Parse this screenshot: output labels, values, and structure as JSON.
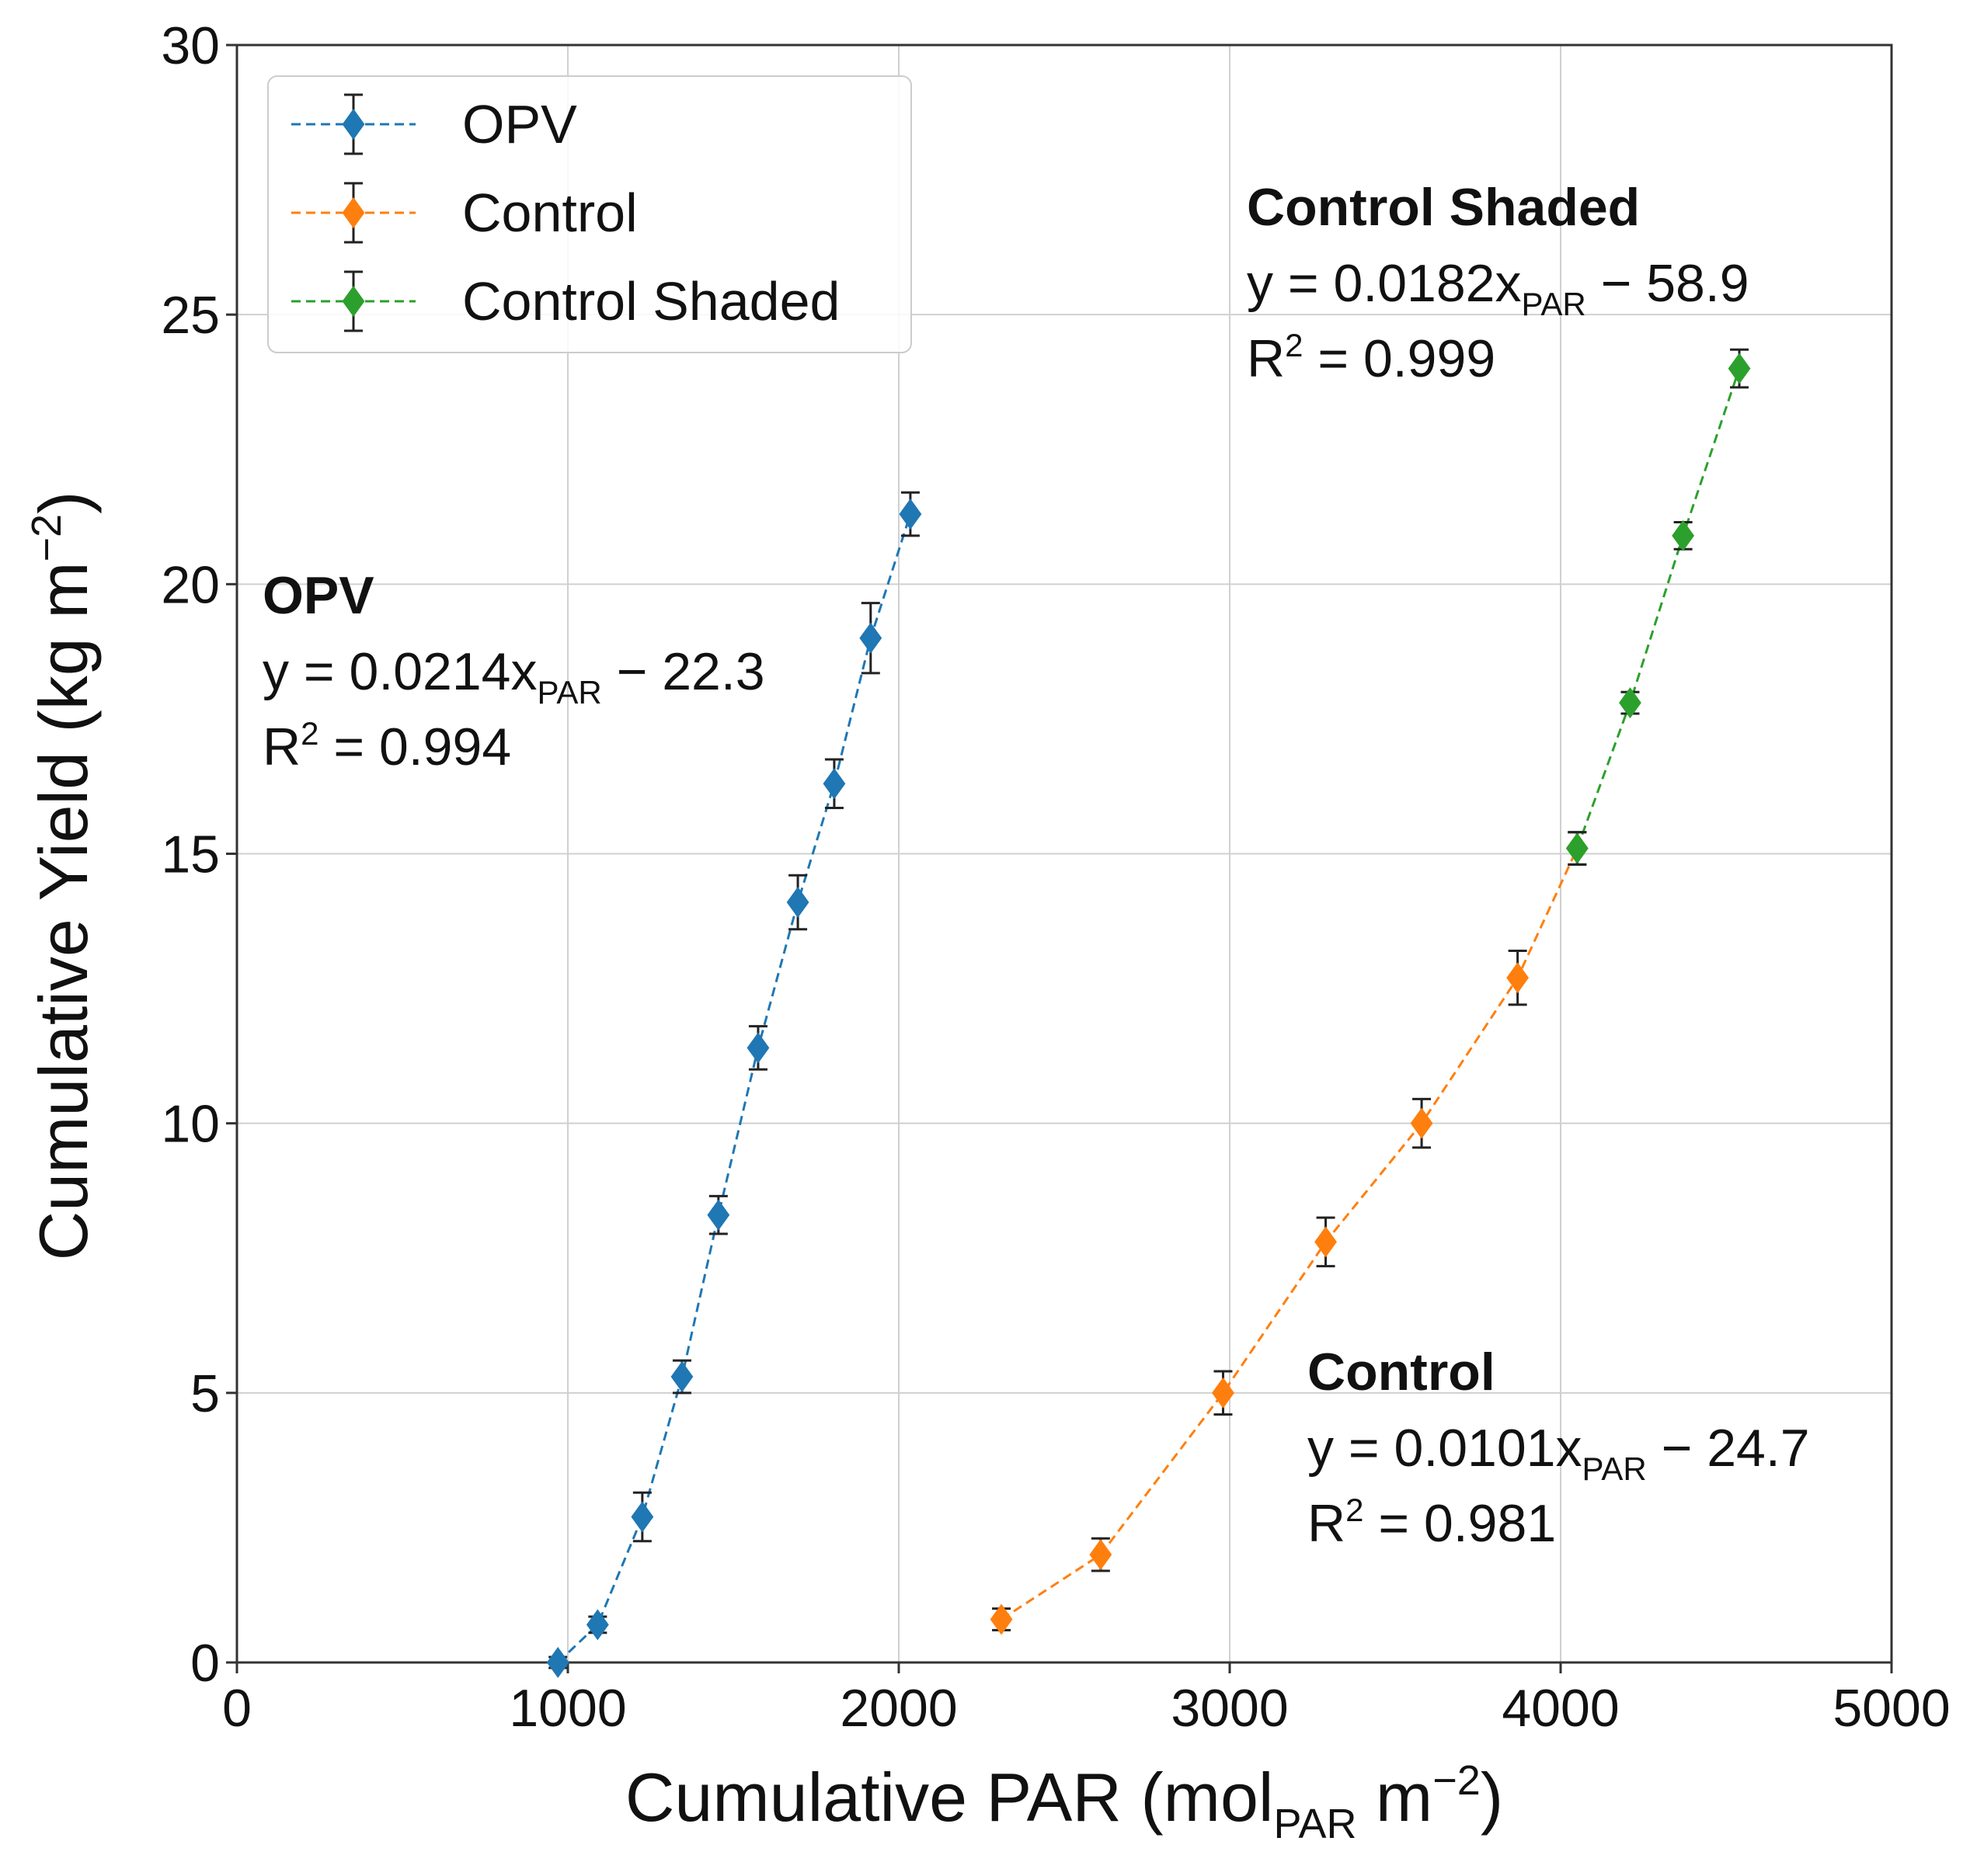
{
  "chart_data": {
    "type": "scatter",
    "xlabel": {
      "main": "Cumulative PAR (mol",
      "sub": "PAR",
      "mid": " m",
      "sup": "−2",
      "end": ")"
    },
    "ylabel": {
      "main": "Cumulative Yield (kg m",
      "sup": "−2",
      "end": ")"
    },
    "xlim": [
      0,
      5000
    ],
    "ylim": [
      0,
      30
    ],
    "x_ticks": [
      "0",
      "1000",
      "2000",
      "3000",
      "4000",
      "5000"
    ],
    "y_ticks": [
      "0",
      "5",
      "10",
      "15",
      "20",
      "25",
      "30"
    ],
    "grid": true,
    "legend_position": "top-left",
    "series": [
      {
        "name": "OPV",
        "color": "#1f77b4",
        "x": [
          970,
          1090,
          1225,
          1345,
          1455,
          1575,
          1695,
          1805,
          1915,
          2035
        ],
        "y": [
          0,
          0.7,
          2.7,
          5.3,
          8.3,
          11.4,
          14.1,
          16.3,
          19.0,
          21.3
        ],
        "err": [
          0.1,
          0.15,
          0.45,
          0.3,
          0.35,
          0.4,
          0.5,
          0.45,
          0.65,
          0.4
        ]
      },
      {
        "name": "Control",
        "color": "#ff7f0e",
        "x": [
          2310,
          2610,
          2980,
          3290,
          3580,
          3870,
          4050
        ],
        "y": [
          0.8,
          2.0,
          5.0,
          7.8,
          10.0,
          12.7,
          15.1
        ],
        "err": [
          0.2,
          0.3,
          0.4,
          0.45,
          0.45,
          0.5,
          0.3
        ]
      },
      {
        "name": "Control Shaded",
        "color": "#2ca02c",
        "x": [
          4050,
          4210,
          4370,
          4540
        ],
        "y": [
          15.1,
          17.8,
          20.9,
          24.0
        ],
        "err": [
          0.3,
          0.2,
          0.25,
          0.35
        ]
      }
    ],
    "annotations": [
      {
        "title": "OPV",
        "eq_pre": "y = 0.0214x",
        "eq_sub": "PAR",
        "eq_post": " − 22.3",
        "r2_pre": "R",
        "r2_sup": "2",
        "r2_post": " = 0.994"
      },
      {
        "title": "Control Shaded",
        "eq_pre": "y = 0.0182x",
        "eq_sub": "PAR",
        "eq_post": " − 58.9",
        "r2_pre": "R",
        "r2_sup": "2",
        "r2_post": " = 0.999"
      },
      {
        "title": "Control",
        "eq_pre": "y = 0.0101x",
        "eq_sub": "PAR",
        "eq_post": " − 24.7",
        "r2_pre": "R",
        "r2_sup": "2",
        "r2_post": " = 0.981"
      }
    ]
  }
}
